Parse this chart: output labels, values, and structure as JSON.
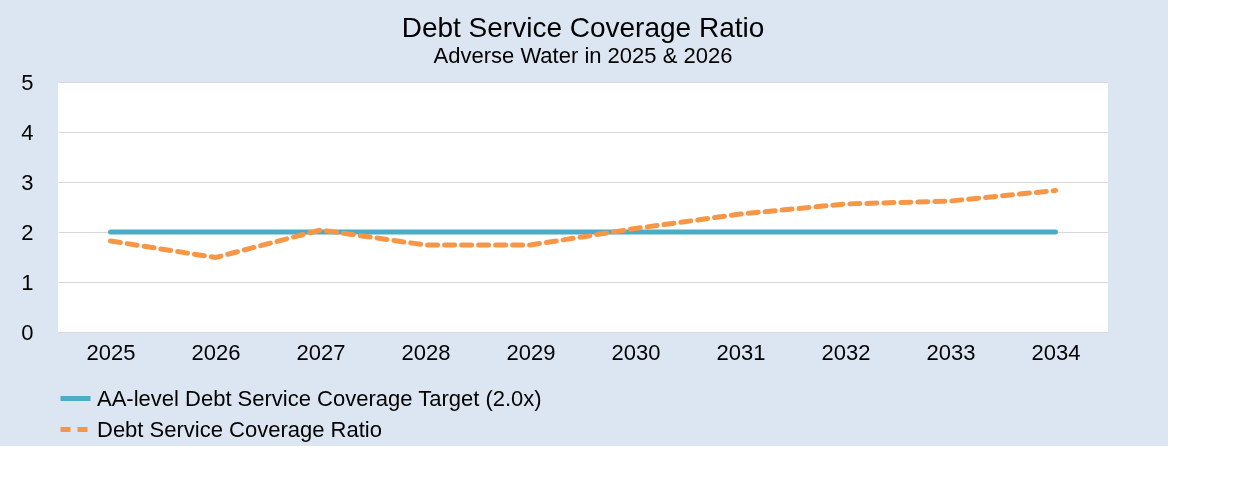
{
  "chart_data": {
    "type": "line",
    "title": "Debt Service Coverage Ratio",
    "subtitle": "Adverse Water in 2025 & 2026",
    "categories": [
      "2025",
      "2026",
      "2027",
      "2028",
      "2029",
      "2030",
      "2031",
      "2032",
      "2033",
      "2034"
    ],
    "series": [
      {
        "name": "AA-level Debt Service Coverage Target (2.0x)",
        "color": "#4bacc6",
        "line_style": "solid",
        "values": [
          2,
          2,
          2,
          2,
          2,
          2,
          2,
          2,
          2,
          2
        ]
      },
      {
        "name": "Debt Service Coverage Ratio",
        "color": "#f79646",
        "line_style": "dashed",
        "values": [
          1.82,
          1.49,
          2.04,
          1.74,
          1.74,
          2.07,
          2.36,
          2.56,
          2.62,
          2.83
        ]
      }
    ],
    "ylim": [
      0,
      5
    ],
    "yticks": [
      0,
      1,
      2,
      3,
      4,
      5
    ],
    "grid": "y",
    "legend": "bottom",
    "marker": "none"
  }
}
